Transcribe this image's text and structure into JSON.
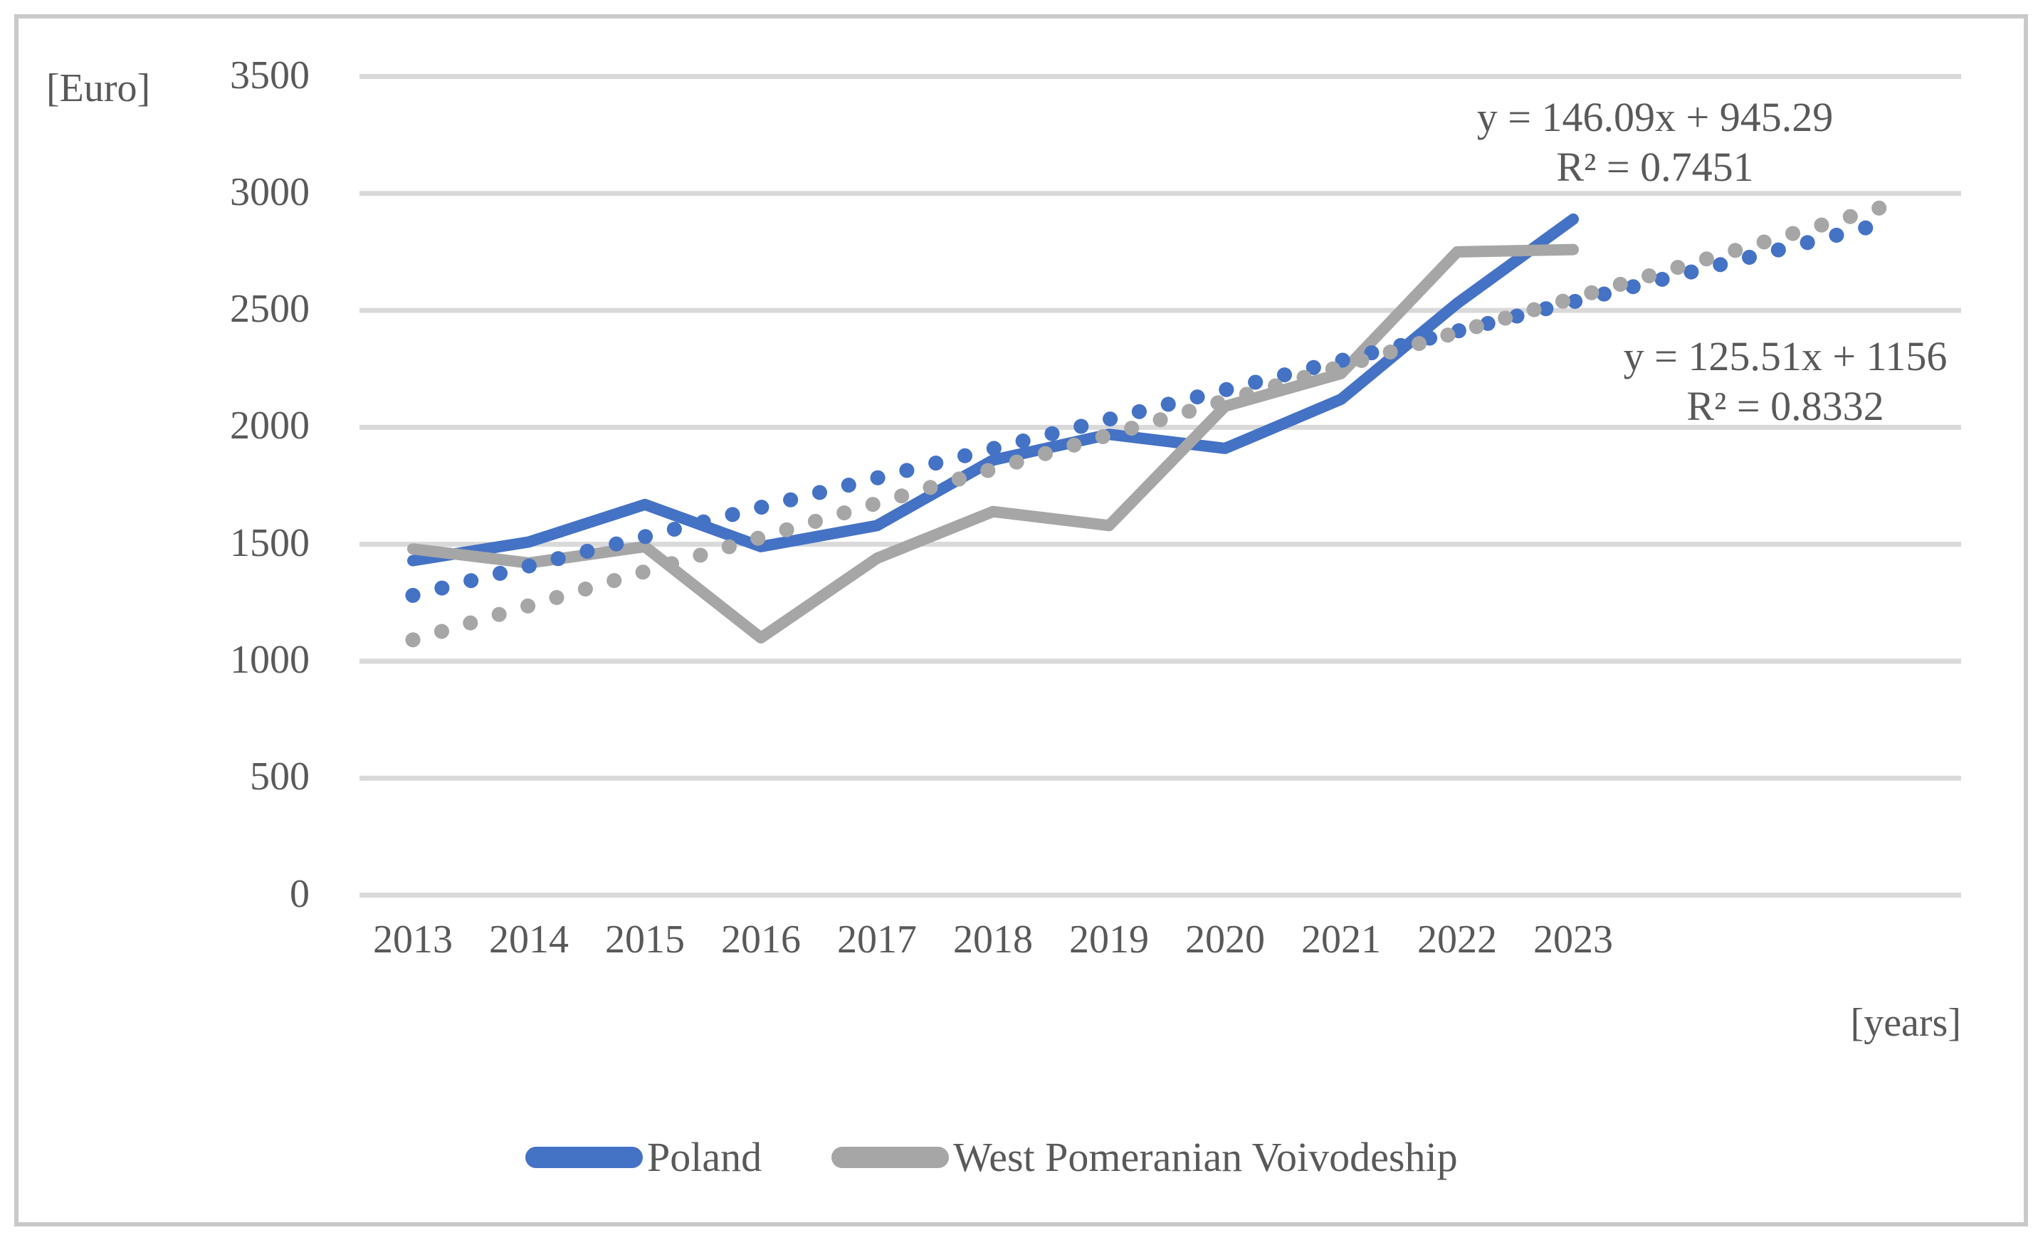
{
  "chart_data": {
    "type": "line",
    "title": "",
    "ylabel_unit": "[Euro]",
    "xlabel_unit": "[years]",
    "ylim": [
      0,
      3500
    ],
    "yticks": [
      3500,
      3000,
      2500,
      2000,
      1500,
      1000,
      500,
      0
    ],
    "categories": [
      "2013",
      "2014",
      "2015",
      "2016",
      "2017",
      "2018",
      "2019",
      "2020",
      "2021",
      "2022",
      "2023"
    ],
    "grid": "horizontal-only",
    "legend_position": "bottom",
    "series": [
      {
        "name": "Poland",
        "color": "#4472C4",
        "style": "solid",
        "values": [
          1430,
          1510,
          1670,
          1490,
          1580,
          1860,
          1970,
          1910,
          2120,
          2530,
          2890
        ]
      },
      {
        "name": "West Pomeranian Voivodeship",
        "color": "#A6A6A6",
        "style": "solid",
        "values": [
          1480,
          1420,
          1490,
          1100,
          1440,
          1640,
          1580,
          2090,
          2230,
          2750,
          2760
        ]
      }
    ],
    "trendlines": [
      {
        "for_series": "West Pomeranian Voivodeship",
        "color": "#A6A6A6",
        "style": "dotted",
        "slope": 146.09,
        "intercept": 945.29,
        "equation_line1": "y = 146.09x + 945.29",
        "equation_line2": "R² = 0.7451",
        "x_start": 1,
        "x_end": 13.75
      },
      {
        "for_series": "Poland",
        "color": "#4472C4",
        "style": "dotted",
        "slope": 125.51,
        "intercept": 1156,
        "equation_line1": "y = 125.51x + 1156",
        "equation_line2": "R² = 0.8332",
        "x_start": 1,
        "x_end": 13.75
      }
    ],
    "colors": {
      "poland": "#4472C4",
      "west_pomeranian": "#A6A6A6",
      "gridline": "#D9D9D9",
      "text": "#595959",
      "frame_border": "#C9C9C9"
    }
  },
  "legend": {
    "items": [
      {
        "label": "Poland"
      },
      {
        "label": "West Pomeranian Voivodeship"
      }
    ]
  }
}
